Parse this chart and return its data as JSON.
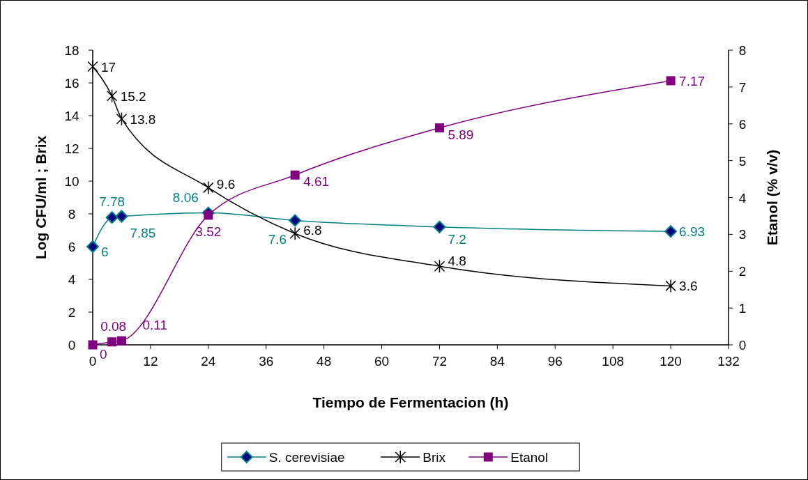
{
  "chart_data": {
    "type": "line",
    "xlabel": "Tiempo de Fermentacion (h)",
    "ylabel": "Log CFU/ml ; Brix",
    "y2label": "Etanol (% v/v)",
    "x": [
      0,
      4,
      6,
      24,
      42,
      72,
      120
    ],
    "xlim": [
      0,
      132
    ],
    "xticks": [
      0,
      12,
      24,
      36,
      48,
      60,
      72,
      84,
      96,
      108,
      120,
      132
    ],
    "ylim": [
      0,
      18
    ],
    "yticks": [
      0,
      2,
      4,
      6,
      8,
      10,
      12,
      14,
      16,
      18
    ],
    "y2lim": [
      0,
      8
    ],
    "y2ticks": [
      0,
      1,
      2,
      3,
      4,
      5,
      6,
      7,
      8
    ],
    "series": [
      {
        "name": "S. cerevisiae",
        "color": "#008080",
        "marker": "diamond",
        "values": [
          6,
          7.78,
          7.85,
          8.06,
          7.6,
          7.2,
          6.93
        ]
      },
      {
        "name": "Brix",
        "color": "#000000",
        "marker": "cross",
        "values": [
          17,
          15.2,
          13.8,
          9.6,
          6.8,
          4.8,
          3.6
        ]
      },
      {
        "name": "Etanol",
        "color": "#800080",
        "marker": "square",
        "axis": "y2",
        "values": [
          0,
          0.08,
          0.11,
          3.52,
          4.61,
          5.89,
          7.17
        ]
      }
    ],
    "data_labels": true,
    "grid": false,
    "legend": "bottom",
    "line_style": "solid"
  }
}
